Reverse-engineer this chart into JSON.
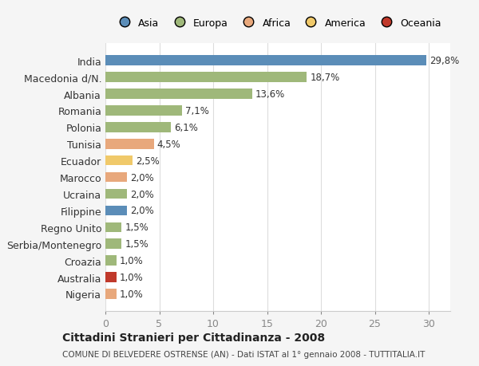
{
  "countries": [
    "Nigeria",
    "Australia",
    "Croazia",
    "Serbia/Montenegro",
    "Regno Unito",
    "Filippine",
    "Ucraina",
    "Marocco",
    "Ecuador",
    "Tunisia",
    "Polonia",
    "Romania",
    "Albania",
    "Macedonia d/N.",
    "India"
  ],
  "values": [
    1.0,
    1.0,
    1.0,
    1.5,
    1.5,
    2.0,
    2.0,
    2.0,
    2.5,
    4.5,
    6.1,
    7.1,
    13.6,
    18.7,
    29.8
  ],
  "labels": [
    "1,0%",
    "1,0%",
    "1,0%",
    "1,5%",
    "1,5%",
    "2,0%",
    "2,0%",
    "2,0%",
    "2,5%",
    "4,5%",
    "6,1%",
    "7,1%",
    "13,6%",
    "18,7%",
    "29,8%"
  ],
  "colors": [
    "#E8A87C",
    "#C0392B",
    "#9FB87A",
    "#9FB87A",
    "#9FB87A",
    "#5B8DB8",
    "#9FB87A",
    "#E8A87C",
    "#F0C96A",
    "#E8A87C",
    "#9FB87A",
    "#9FB87A",
    "#9FB87A",
    "#9FB87A",
    "#5B8DB8"
  ],
  "legend": [
    {
      "label": "Asia",
      "color": "#5B8DB8"
    },
    {
      "label": "Europa",
      "color": "#9FB87A"
    },
    {
      "label": "Africa",
      "color": "#E8A87C"
    },
    {
      "label": "America",
      "color": "#F0C96A"
    },
    {
      "label": "Oceania",
      "color": "#C0392B"
    }
  ],
  "xlim": [
    0,
    32
  ],
  "xticks": [
    0,
    5,
    10,
    15,
    20,
    25,
    30
  ],
  "title": "Cittadini Stranieri per Cittadinanza - 2008",
  "subtitle": "COMUNE DI BELVEDERE OSTRENSE (AN) - Dati ISTAT al 1° gennaio 2008 - TUTTITALIA.IT",
  "background_color": "#f5f5f5",
  "plot_bg_color": "#ffffff",
  "bar_height": 0.6,
  "grid_color": "#dddddd"
}
